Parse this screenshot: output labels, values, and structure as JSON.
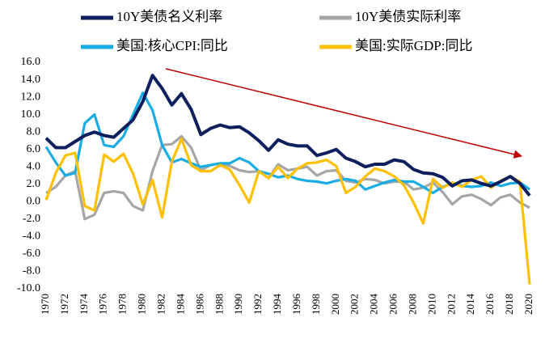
{
  "chart_data": {
    "type": "line",
    "x": [
      1970,
      1971,
      1972,
      1973,
      1974,
      1975,
      1976,
      1977,
      1978,
      1979,
      1980,
      1981,
      1982,
      1983,
      1984,
      1985,
      1986,
      1987,
      1988,
      1989,
      1990,
      1991,
      1992,
      1993,
      1994,
      1995,
      1996,
      1997,
      1998,
      1999,
      2000,
      2001,
      2002,
      2003,
      2004,
      2005,
      2006,
      2007,
      2008,
      2009,
      2010,
      2011,
      2012,
      2013,
      2014,
      2015,
      2016,
      2017,
      2018,
      2019,
      2020
    ],
    "series": [
      {
        "name": "10Y美债名义利率",
        "color": "#0d1f5c",
        "values": [
          7.3,
          6.2,
          6.2,
          6.9,
          7.6,
          8.0,
          7.6,
          7.4,
          8.4,
          9.4,
          11.5,
          14.5,
          13.0,
          11.1,
          12.4,
          10.6,
          7.7,
          8.4,
          8.8,
          8.5,
          8.6,
          7.9,
          7.0,
          5.9,
          7.1,
          6.6,
          6.4,
          6.4,
          5.3,
          5.6,
          6.0,
          5.0,
          4.6,
          4.0,
          4.3,
          4.3,
          4.8,
          4.6,
          3.7,
          3.3,
          3.2,
          2.8,
          1.8,
          2.4,
          2.5,
          2.1,
          1.8,
          2.3,
          2.9,
          2.1,
          0.7
        ]
      },
      {
        "name": "10Y美债实际利率",
        "color": "#a6a6a6",
        "values": [
          1.0,
          1.7,
          3.0,
          3.5,
          -2.0,
          -1.5,
          1.0,
          1.2,
          1.0,
          -0.5,
          -1.0,
          3.5,
          6.5,
          6.6,
          7.5,
          6.2,
          3.6,
          4.2,
          4.4,
          4.1,
          3.6,
          3.4,
          3.5,
          2.7,
          4.3,
          3.6,
          3.8,
          4.0,
          3.0,
          3.5,
          3.6,
          2.4,
          2.2,
          2.6,
          2.5,
          2.1,
          2.3,
          2.3,
          1.4,
          1.6,
          2.2,
          1.1,
          -0.3,
          0.6,
          0.8,
          0.3,
          -0.4,
          0.5,
          0.8,
          -0.1,
          -0.7
        ]
      },
      {
        "name": "美国:核心CPI:同比",
        "color": "#1aace4",
        "values": [
          6.3,
          4.5,
          3.0,
          3.3,
          9.0,
          10.0,
          6.5,
          6.3,
          7.5,
          10.0,
          12.5,
          10.5,
          6.5,
          4.5,
          4.9,
          4.4,
          4.0,
          4.2,
          4.4,
          4.4,
          5.0,
          4.5,
          3.5,
          3.2,
          2.8,
          3.0,
          2.6,
          2.4,
          2.3,
          2.1,
          2.4,
          2.6,
          2.4,
          1.4,
          1.8,
          2.2,
          2.5,
          2.3,
          2.3,
          1.7,
          1.0,
          1.7,
          2.1,
          1.8,
          1.7,
          1.8,
          2.2,
          1.8,
          2.1,
          2.2,
          1.4
        ]
      },
      {
        "name": "美国:实际GDP:同比",
        "color": "#ffc000",
        "values": [
          0.2,
          3.3,
          5.3,
          5.6,
          -0.5,
          -1.0,
          5.4,
          4.6,
          5.5,
          3.2,
          -0.3,
          2.5,
          -1.8,
          4.6,
          7.2,
          4.2,
          3.5,
          3.5,
          4.2,
          3.7,
          1.9,
          -0.1,
          3.5,
          2.7,
          4.0,
          2.7,
          3.8,
          4.4,
          4.5,
          4.8,
          4.1,
          1.0,
          1.7,
          2.9,
          3.8,
          3.5,
          2.9,
          1.9,
          -0.1,
          -2.5,
          2.6,
          1.6,
          2.2,
          1.7,
          2.5,
          2.9,
          1.6,
          2.4,
          2.9,
          2.3,
          -9.5
        ]
      }
    ],
    "xlim": [
      1970,
      2020
    ],
    "xticks": [
      1970,
      1972,
      1974,
      1976,
      1978,
      1980,
      1982,
      1984,
      1986,
      1988,
      1990,
      1992,
      1994,
      1996,
      1998,
      2000,
      2002,
      2004,
      2006,
      2008,
      2010,
      2012,
      2014,
      2016,
      2018,
      2020
    ],
    "ylim": [
      -10,
      16
    ],
    "yticks": [
      {
        "value": 16,
        "label": "16.0"
      },
      {
        "value": 14,
        "label": "14.0"
      },
      {
        "value": 12,
        "label": "12.0"
      },
      {
        "value": 10,
        "label": "10.0"
      },
      {
        "value": 8,
        "label": "8.0"
      },
      {
        "value": 6,
        "label": "6.0"
      },
      {
        "value": 4,
        "label": "4.0"
      },
      {
        "value": 2,
        "label": "2.0"
      },
      {
        "value": 0,
        "label": "0.0"
      },
      {
        "value": -2,
        "label": "-2.0"
      },
      {
        "value": -4,
        "label": "-4.0"
      },
      {
        "value": -6,
        "label": "-6.0"
      },
      {
        "value": -8,
        "label": "-8.0"
      },
      {
        "value": -10,
        "label": "-10.0"
      }
    ],
    "grid": false,
    "legend": "top"
  }
}
